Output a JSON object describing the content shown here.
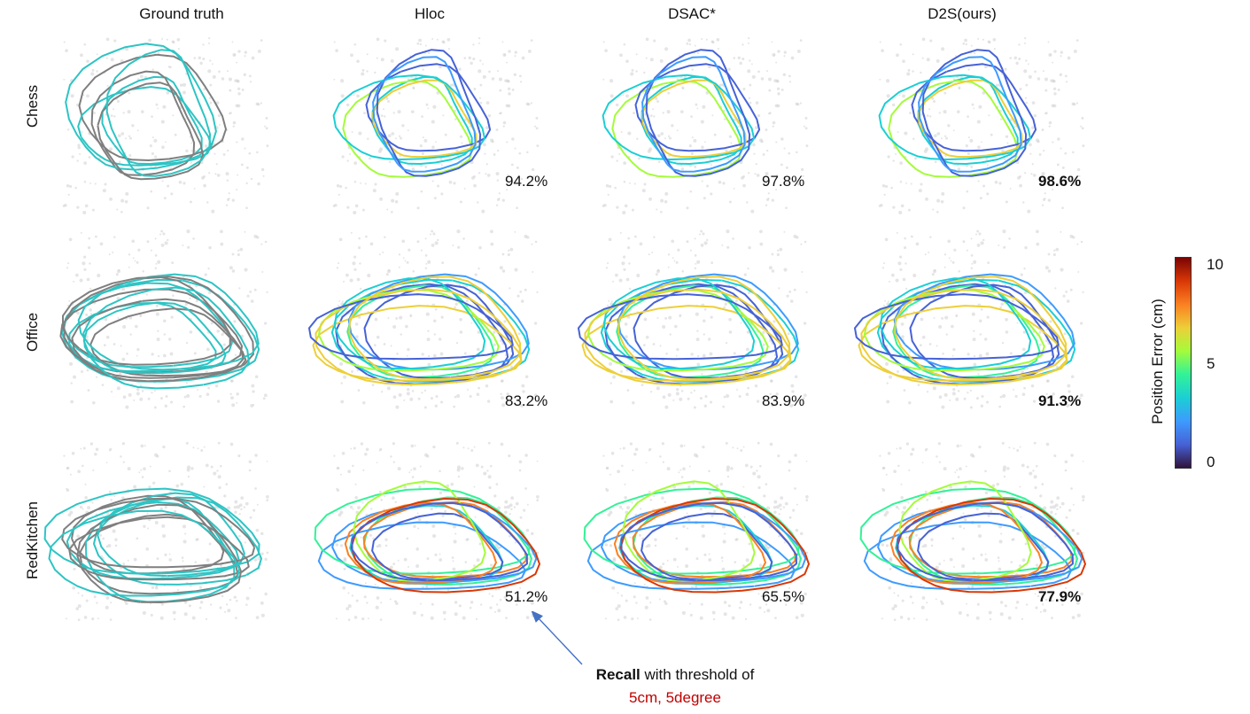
{
  "columns": [
    "Ground truth",
    "Hloc",
    "DSAC*",
    "D2S(ours)"
  ],
  "rows": [
    "Chess",
    "Office",
    "RedKitchen"
  ],
  "recall": [
    [
      "",
      "94.2%",
      "97.8%",
      "98.6%"
    ],
    [
      "",
      "83.2%",
      "83.9%",
      "91.3%"
    ],
    [
      "",
      "51.2%",
      "65.5%",
      "77.9%"
    ]
  ],
  "best_column": 3,
  "colorbar": {
    "title": "Position Error (cm)",
    "ticks": [
      "10",
      "5",
      "0"
    ],
    "colors": [
      "#7a0403",
      "#d93806",
      "#fb8022",
      "#edcf39",
      "#a4fc3b",
      "#32f298",
      "#1bcfd4",
      "#3e9bfe",
      "#4662d7",
      "#30123b"
    ]
  },
  "annotation": {
    "bold": "Recall",
    "rest": " with threshold of",
    "red": "5cm, 5degree",
    "arrow_color": "#4472c4"
  },
  "legend_colors": {
    "ground_truth": "#2ec4c4",
    "estimate_gt": "#7f7f7f",
    "pointcloud": "#cfcfcf"
  }
}
